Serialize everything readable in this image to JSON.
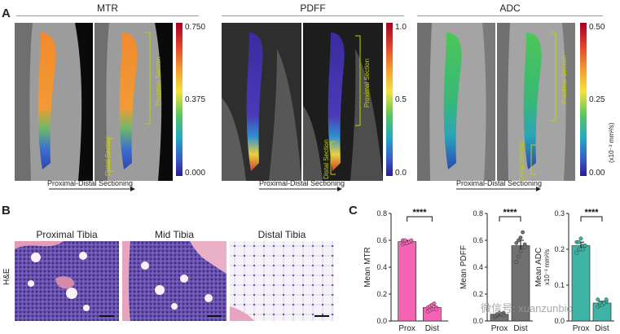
{
  "panel_a": {
    "letter": "A",
    "groups": [
      {
        "title": "MTR",
        "cbar_ticks": [
          "0.750",
          "0.375",
          "0.000"
        ],
        "cbar_unit": "",
        "prox_label": "Proximal Section",
        "dist_label": "Distal Section"
      },
      {
        "title": "PDFF",
        "cbar_ticks": [
          "1.0",
          "0.5",
          "0.0"
        ],
        "cbar_unit": "",
        "prox_label": "Proximal Section",
        "dist_label": "Distal Section"
      },
      {
        "title": "ADC",
        "cbar_ticks": [
          "0.50",
          "0.25",
          "0.00"
        ],
        "cbar_unit": "(x10⁻³ mm²/s)",
        "prox_label": "Proximal Section",
        "dist_label": "Distal Section"
      }
    ],
    "arrow_caption": "Proximal-Distal Sectioning",
    "colors": {
      "jet_top": "#a50026",
      "jet_mid": "#2ac25f",
      "jet_bottom": "#2b1b8f"
    }
  },
  "panel_b": {
    "letter": "B",
    "row_label": "H&E",
    "images": [
      {
        "title": "Proximal Tibia"
      },
      {
        "title": "Mid Tibia"
      },
      {
        "title": "Distal Tibia"
      }
    ]
  },
  "panel_c": {
    "letter": "C",
    "watermark": "微信号: xuanzunbio"
  },
  "chart_data": [
    {
      "type": "bar",
      "categories": [
        "Prox",
        "Dist"
      ],
      "values": [
        0.59,
        0.1
      ],
      "errors": [
        0.01,
        0.015
      ],
      "points": [
        [
          0.57,
          0.58,
          0.58,
          0.59,
          0.59,
          0.6,
          0.6,
          0.58,
          0.59,
          0.6
        ],
        [
          0.07,
          0.08,
          0.09,
          0.09,
          0.1,
          0.1,
          0.11,
          0.12,
          0.13,
          0.09
        ]
      ],
      "ylabel": "Mean MTR",
      "ylim": [
        0.0,
        0.8
      ],
      "yticks": [
        "0.0",
        "0.2",
        "0.4",
        "0.6",
        "0.8"
      ],
      "significance": "****",
      "colors": [
        "#f564b4",
        "#f564b4"
      ]
    },
    {
      "type": "bar",
      "categories": [
        "Prox",
        "Dist"
      ],
      "values": [
        0.05,
        0.56
      ],
      "errors": [
        0.01,
        0.04
      ],
      "points": [
        [
          0.03,
          0.04,
          0.05,
          0.05,
          0.06,
          0.04,
          0.05,
          0.06,
          0.05,
          0.04
        ],
        [
          0.44,
          0.48,
          0.52,
          0.55,
          0.57,
          0.58,
          0.6,
          0.62,
          0.66,
          0.55
        ]
      ],
      "ylabel": "Mean PDFF",
      "ylim": [
        0.0,
        0.8
      ],
      "yticks": [
        "0.0",
        "0.2",
        "0.4",
        "0.6",
        "0.8"
      ],
      "significance": "****",
      "colors": [
        "#707070",
        "#707070"
      ]
    },
    {
      "type": "bar",
      "categories": [
        "Prox",
        "Dist"
      ],
      "values": [
        0.21,
        0.05
      ],
      "errors": [
        0.01,
        0.005
      ],
      "points": [
        [
          0.19,
          0.2,
          0.2,
          0.21,
          0.21,
          0.22,
          0.22,
          0.23,
          0.2,
          0.21
        ],
        [
          0.04,
          0.045,
          0.05,
          0.05,
          0.055,
          0.06,
          0.05,
          0.045,
          0.05,
          0.06
        ]
      ],
      "ylabel": "Mean ADC",
      "ylabel2": "x10⁻³ mm²/s",
      "ylim": [
        0.0,
        0.3
      ],
      "yticks": [
        "0.0",
        "0.1",
        "0.2",
        "0.3"
      ],
      "significance": "****",
      "colors": [
        "#3fb3a5",
        "#3fb3a5"
      ]
    }
  ]
}
